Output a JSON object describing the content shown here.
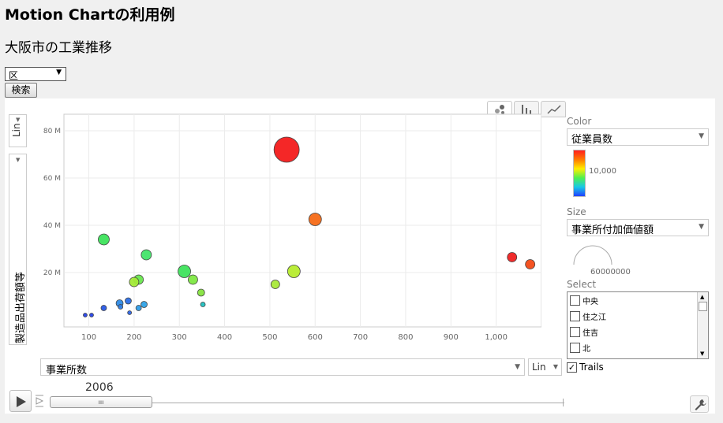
{
  "page": {
    "title": "Motion Chartの利用例",
    "subtitle": "大阪市の工業推移",
    "ward_select_value": "区",
    "search_button": "検索"
  },
  "chart": {
    "y_scale": "Lin",
    "x_scale": "Lin",
    "y_variable": "製造品出荷額等",
    "x_variable": "事業所数",
    "year": "2006",
    "color_label": "Color",
    "color_variable": "従業員数",
    "color_tick": "10,000",
    "size_label": "Size",
    "size_variable": "事業所付加価値額",
    "size_value": "60000000",
    "select_label": "Select",
    "select_items": [
      {
        "label": "中央",
        "checked": false
      },
      {
        "label": "住之江",
        "checked": false
      },
      {
        "label": "住吉",
        "checked": false
      },
      {
        "label": "北",
        "checked": false
      }
    ],
    "trails_label": "Trails",
    "trails_checked": true
  },
  "chart_data": {
    "type": "scatter",
    "title": "",
    "xlabel": "事業所数",
    "ylabel": "製造品出荷額等",
    "x_ticks": [
      "100",
      "200",
      "300",
      "400",
      "500",
      "600",
      "700",
      "800",
      "900",
      "1,000"
    ],
    "y_ticks": [
      "20 M",
      "40 M",
      "60 M",
      "80 M"
    ],
    "xlim": [
      45,
      1100
    ],
    "ylim": [
      -3,
      87
    ],
    "grid": true,
    "points": [
      {
        "x": 537,
        "y": 72,
        "size": 32,
        "color": "#f31b1b"
      },
      {
        "x": 600,
        "y": 42.5,
        "size": 16,
        "color": "#f56a16"
      },
      {
        "x": 1035,
        "y": 26.5,
        "size": 12,
        "color": "#ef2121"
      },
      {
        "x": 1075,
        "y": 23.5,
        "size": 12,
        "color": "#f34a16"
      },
      {
        "x": 133,
        "y": 34,
        "size": 14,
        "color": "#3ee35c"
      },
      {
        "x": 227,
        "y": 27.5,
        "size": 13,
        "color": "#44e46a"
      },
      {
        "x": 311,
        "y": 20.5,
        "size": 16,
        "color": "#3ee35c"
      },
      {
        "x": 553,
        "y": 20.5,
        "size": 16,
        "color": "#b6ec2e"
      },
      {
        "x": 330,
        "y": 17,
        "size": 12,
        "color": "#7ee843"
      },
      {
        "x": 210,
        "y": 17,
        "size": 12,
        "color": "#69e64e"
      },
      {
        "x": 200,
        "y": 16,
        "size": 12,
        "color": "#a2ea36"
      },
      {
        "x": 512,
        "y": 15,
        "size": 11,
        "color": "#a9e939"
      },
      {
        "x": 348,
        "y": 11.5,
        "size": 9,
        "color": "#86e33f"
      },
      {
        "x": 352,
        "y": 6.5,
        "size": 6,
        "color": "#20c0c0"
      },
      {
        "x": 168,
        "y": 7,
        "size": 9,
        "color": "#2f8be6"
      },
      {
        "x": 187,
        "y": 8,
        "size": 8,
        "color": "#2c6fe6"
      },
      {
        "x": 222,
        "y": 6.5,
        "size": 8,
        "color": "#2fa2e6"
      },
      {
        "x": 170,
        "y": 5.5,
        "size": 6,
        "color": "#2d7de6"
      },
      {
        "x": 210,
        "y": 5,
        "size": 7,
        "color": "#2f9be6"
      },
      {
        "x": 133,
        "y": 5,
        "size": 7,
        "color": "#2858e6"
      },
      {
        "x": 190,
        "y": 3,
        "size": 5,
        "color": "#2c64e6"
      },
      {
        "x": 92,
        "y": 2,
        "size": 5,
        "color": "#2542e6"
      },
      {
        "x": 106,
        "y": 2,
        "size": 5,
        "color": "#2542e6"
      }
    ]
  }
}
